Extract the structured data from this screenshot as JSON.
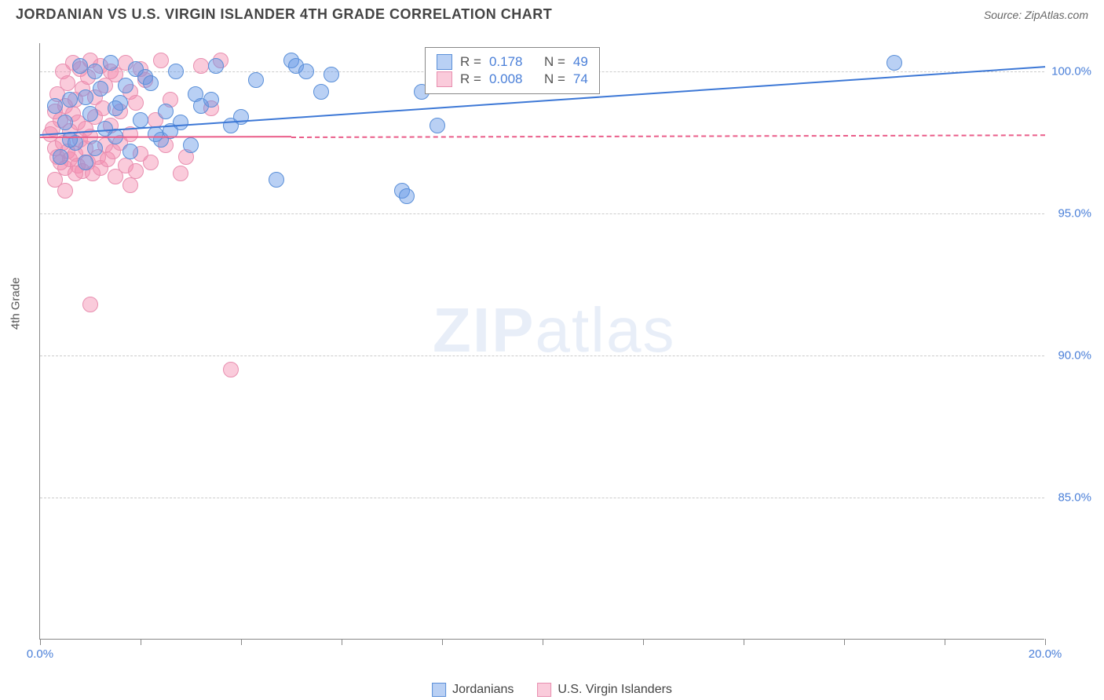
{
  "title": "JORDANIAN VS U.S. VIRGIN ISLANDER 4TH GRADE CORRELATION CHART",
  "source": "Source: ZipAtlas.com",
  "ylabel": "4th Grade",
  "watermark_zip": "ZIP",
  "watermark_atlas": "atlas",
  "chart": {
    "type": "scatter",
    "xlim": [
      0,
      20
    ],
    "ylim": [
      80,
      101
    ],
    "xticks": [
      0,
      2,
      4,
      6,
      8,
      10,
      12,
      14,
      16,
      18,
      20
    ],
    "xtick_labels": {
      "0": "0.0%",
      "20": "20.0%"
    },
    "yticks": [
      85,
      90,
      95,
      100
    ],
    "ytick_labels": {
      "85": "85.0%",
      "90": "90.0%",
      "95": "95.0%",
      "100": "100.0%"
    },
    "grid_color": "#cccccc",
    "background": "#ffffff",
    "marker_radius": 10,
    "marker_opacity": 0.5,
    "series": [
      {
        "name": "Jordanians",
        "color_fill": "rgba(100,150,230,0.45)",
        "color_stroke": "#5a8fd8",
        "trend_color": "#3d78d6",
        "r_label": "R =",
        "r_value": "0.178",
        "n_label": "N =",
        "n_value": "49",
        "trend": {
          "x0": 0,
          "y0": 97.8,
          "x1": 20,
          "y1": 100.2,
          "solid_until": 20
        },
        "points": [
          [
            0.4,
            97.0
          ],
          [
            0.5,
            98.2
          ],
          [
            0.6,
            99.0
          ],
          [
            0.7,
            97.5
          ],
          [
            0.8,
            100.2
          ],
          [
            0.9,
            96.8
          ],
          [
            1.0,
            98.5
          ],
          [
            1.1,
            97.3
          ],
          [
            1.2,
            99.4
          ],
          [
            1.4,
            100.3
          ],
          [
            1.5,
            97.7
          ],
          [
            1.6,
            98.9
          ],
          [
            1.8,
            97.2
          ],
          [
            1.9,
            100.1
          ],
          [
            2.0,
            98.3
          ],
          [
            2.1,
            99.8
          ],
          [
            2.4,
            97.6
          ],
          [
            2.5,
            98.6
          ],
          [
            2.7,
            100.0
          ],
          [
            3.0,
            97.4
          ],
          [
            3.1,
            99.2
          ],
          [
            3.2,
            98.8
          ],
          [
            3.5,
            100.2
          ],
          [
            3.8,
            98.1
          ],
          [
            4.7,
            96.2
          ],
          [
            5.0,
            100.4
          ],
          [
            5.1,
            100.2
          ],
          [
            5.3,
            100.0
          ],
          [
            5.6,
            99.3
          ],
          [
            5.8,
            99.9
          ],
          [
            7.2,
            95.8
          ],
          [
            7.3,
            95.6
          ],
          [
            7.6,
            99.3
          ],
          [
            7.9,
            98.1
          ],
          [
            17.0,
            100.3
          ],
          [
            1.3,
            98.0
          ],
          [
            1.7,
            99.5
          ],
          [
            2.3,
            97.8
          ],
          [
            2.8,
            98.2
          ],
          [
            0.3,
            98.8
          ],
          [
            0.6,
            97.6
          ],
          [
            0.9,
            99.1
          ],
          [
            1.1,
            100.0
          ],
          [
            1.5,
            98.7
          ],
          [
            2.2,
            99.6
          ],
          [
            2.6,
            97.9
          ],
          [
            3.4,
            99.0
          ],
          [
            4.0,
            98.4
          ],
          [
            4.3,
            99.7
          ]
        ]
      },
      {
        "name": "U.S. Virgin Islanders",
        "color_fill": "rgba(245,140,175,0.45)",
        "color_stroke": "#e88fb0",
        "trend_color": "#ea5e8a",
        "r_label": "R =",
        "r_value": "0.008",
        "n_label": "N =",
        "n_value": "74",
        "trend": {
          "x0": 0,
          "y0": 97.7,
          "x1": 20,
          "y1": 97.8,
          "solid_until": 5
        },
        "points": [
          [
            0.2,
            97.8
          ],
          [
            0.25,
            98.0
          ],
          [
            0.3,
            97.3
          ],
          [
            0.3,
            98.6
          ],
          [
            0.35,
            97.0
          ],
          [
            0.35,
            99.2
          ],
          [
            0.4,
            96.8
          ],
          [
            0.4,
            98.3
          ],
          [
            0.45,
            97.5
          ],
          [
            0.45,
            100.0
          ],
          [
            0.5,
            96.6
          ],
          [
            0.5,
            98.8
          ],
          [
            0.55,
            97.2
          ],
          [
            0.55,
            99.6
          ],
          [
            0.6,
            97.9
          ],
          [
            0.6,
            96.9
          ],
          [
            0.65,
            98.5
          ],
          [
            0.65,
            100.3
          ],
          [
            0.7,
            97.1
          ],
          [
            0.7,
            99.0
          ],
          [
            0.75,
            96.7
          ],
          [
            0.75,
            98.2
          ],
          [
            0.8,
            97.6
          ],
          [
            0.8,
            100.1
          ],
          [
            0.85,
            96.5
          ],
          [
            0.85,
            99.4
          ],
          [
            0.9,
            98.0
          ],
          [
            0.9,
            97.3
          ],
          [
            0.95,
            96.8
          ],
          [
            0.95,
            99.8
          ],
          [
            1.0,
            97.7
          ],
          [
            1.0,
            100.4
          ],
          [
            1.05,
            96.4
          ],
          [
            1.1,
            98.4
          ],
          [
            1.1,
            99.1
          ],
          [
            1.15,
            97.0
          ],
          [
            1.2,
            100.2
          ],
          [
            1.2,
            96.6
          ],
          [
            1.25,
            98.7
          ],
          [
            1.3,
            97.4
          ],
          [
            1.3,
            99.5
          ],
          [
            1.35,
            96.9
          ],
          [
            1.4,
            98.1
          ],
          [
            1.4,
            100.0
          ],
          [
            1.45,
            97.2
          ],
          [
            1.5,
            99.9
          ],
          [
            1.5,
            96.3
          ],
          [
            1.6,
            98.6
          ],
          [
            1.6,
            97.5
          ],
          [
            1.7,
            100.3
          ],
          [
            1.7,
            96.7
          ],
          [
            1.8,
            99.3
          ],
          [
            1.8,
            97.8
          ],
          [
            1.9,
            98.9
          ],
          [
            1.9,
            96.5
          ],
          [
            2.0,
            100.1
          ],
          [
            2.0,
            97.1
          ],
          [
            2.1,
            99.7
          ],
          [
            2.2,
            96.8
          ],
          [
            2.3,
            98.3
          ],
          [
            2.4,
            100.4
          ],
          [
            2.5,
            97.4
          ],
          [
            2.6,
            99.0
          ],
          [
            2.8,
            96.4
          ],
          [
            2.9,
            97.0
          ],
          [
            3.2,
            100.2
          ],
          [
            3.4,
            98.7
          ],
          [
            3.6,
            100.4
          ],
          [
            1.0,
            91.8
          ],
          [
            1.8,
            96.0
          ],
          [
            0.3,
            96.2
          ],
          [
            0.5,
            95.8
          ],
          [
            0.7,
            96.4
          ],
          [
            3.8,
            89.5
          ]
        ]
      }
    ]
  },
  "legend_r_color": "#4a7fd8",
  "legend_text_color": "#555555"
}
